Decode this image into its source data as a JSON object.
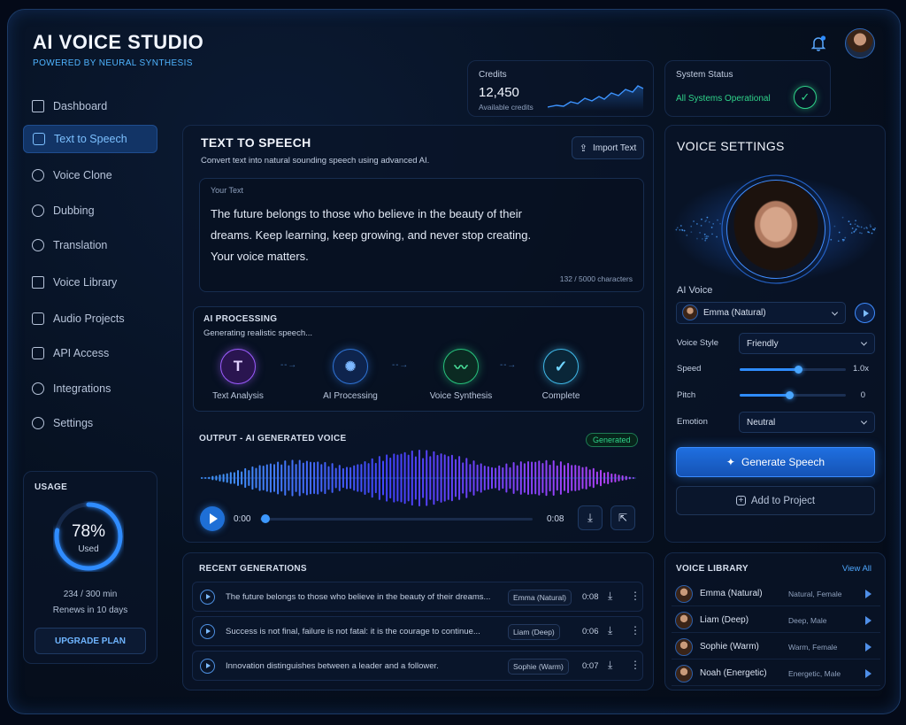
{
  "app": {
    "title": "AI VOICE STUDIO",
    "tagline": "POWERED BY NEURAL SYNTHESIS"
  },
  "sidebar": {
    "items": [
      {
        "label": "Dashboard",
        "icon": "dashboard-icon"
      },
      {
        "label": "Text to Speech",
        "icon": "music-note-icon",
        "active": true
      },
      {
        "label": "Voice Clone",
        "icon": "user-circle-icon"
      },
      {
        "label": "Dubbing",
        "icon": "dubbing-icon"
      },
      {
        "label": "Translation",
        "icon": "globe-icon"
      },
      {
        "label": "Voice Library",
        "icon": "document-icon"
      },
      {
        "label": "Audio Projects",
        "icon": "folder-audio-icon"
      },
      {
        "label": "API Access",
        "icon": "api-icon"
      },
      {
        "label": "Integrations",
        "icon": "gear-icon"
      },
      {
        "label": "Settings",
        "icon": "settings-icon"
      }
    ]
  },
  "usage": {
    "title": "USAGE",
    "percent_text": "78%",
    "percent": 78,
    "used_label": "Used",
    "minutes": "234 / 300 min",
    "renews": "Renews in 10 days",
    "upgrade_label": "UPGRADE PLAN"
  },
  "credits": {
    "label": "Credits",
    "value": "12,450",
    "sub": "Available credits"
  },
  "system": {
    "label": "System Status",
    "status": "All Systems Operational"
  },
  "tts": {
    "title": "TEXT TO SPEECH",
    "subtitle": "Convert text into natural sounding speech using advanced AI.",
    "import_label": "Import Text",
    "text_label": "Your Text",
    "text_lines": [
      "The future belongs to those who believe in the beauty of their",
      "dreams. Keep learning, keep growing, and never stop creating.",
      "Your voice matters."
    ],
    "char_count": "132 / 5000 characters"
  },
  "processing": {
    "title": "AI PROCESSING",
    "status": "Generating realistic speech...",
    "steps": [
      {
        "label": "Text Analysis",
        "glyph": "T"
      },
      {
        "label": "AI Processing",
        "glyph": "✺"
      },
      {
        "label": "Voice Synthesis",
        "glyph": "〰"
      },
      {
        "label": "Complete",
        "glyph": "✓"
      }
    ]
  },
  "output": {
    "title": "OUTPUT - AI GENERATED VOICE",
    "badge": "Generated",
    "time_start": "0:00",
    "time_end": "0:08",
    "progress": 0.0
  },
  "recent": {
    "title": "RECENT GENERATIONS",
    "rows": [
      {
        "text": "The future belongs to those who believe in the beauty of their dreams...",
        "voice": "Emma (Natural)",
        "duration": "0:08"
      },
      {
        "text": "Success is not final, failure is not fatal: it is the courage to continue...",
        "voice": "Liam (Deep)",
        "duration": "0:06"
      },
      {
        "text": "Innovation distinguishes between a leader and a follower.",
        "voice": "Sophie (Warm)",
        "duration": "0:07"
      }
    ]
  },
  "voice_settings": {
    "title": "VOICE SETTINGS",
    "ai_voice_label": "AI Voice",
    "ai_voice": "Emma (Natural)",
    "style_label": "Voice Style",
    "style": "Friendly",
    "speed_label": "Speed",
    "speed": "1.0x",
    "speed_fraction": 0.55,
    "pitch_label": "Pitch",
    "pitch": "0",
    "pitch_fraction": 0.47,
    "emotion_label": "Emotion",
    "emotion": "Neutral",
    "generate_label": "Generate Speech",
    "add_label": "Add to Project"
  },
  "library": {
    "title": "VOICE LIBRARY",
    "view_all": "View All",
    "voices": [
      {
        "name": "Emma (Natural)",
        "desc": "Natural, Female"
      },
      {
        "name": "Liam (Deep)",
        "desc": "Deep, Male"
      },
      {
        "name": "Sophie (Warm)",
        "desc": "Warm, Female"
      },
      {
        "name": "Noah (Energetic)",
        "desc": "Energetic, Male"
      }
    ]
  },
  "colors": {
    "accent": "#2f8cff",
    "success": "#2fd38a",
    "purple": "#a06bff"
  }
}
